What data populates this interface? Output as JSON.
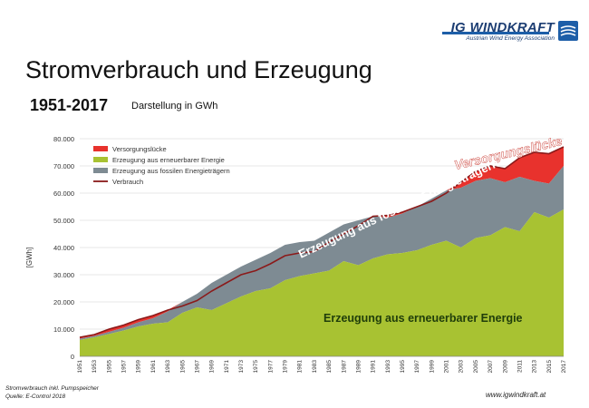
{
  "header": {
    "logo_title": "IG WINDKRAFT",
    "logo_subtitle": "Austrian Wind Energy Association",
    "title": "Stromverbrauch und Erzeugung",
    "range": "1951-2017",
    "unit_note": "Darstellung in GWh"
  },
  "footer": {
    "note_line1": "Stromverbrauch inkl. Pumpspeicher",
    "note_line2": "Quelle: E-Control 2018",
    "url": "www.igwindkraft.at"
  },
  "colors": {
    "renewable": "#a8c232",
    "fossil": "#7e8b93",
    "gap": "#e8322d",
    "consumption": "#8b1a1a",
    "grid": "#d0d0d0",
    "logo": "#1d3e73"
  },
  "chart_data": {
    "type": "area",
    "ylabel": "[GWh]",
    "xlabel": "",
    "ylim": [
      0,
      80000
    ],
    "yticks": [
      "0",
      "10.000",
      "20.000",
      "30.000",
      "40.000",
      "50.000",
      "60.000",
      "70.000",
      "80.000"
    ],
    "xticks": [
      "1951",
      "1953",
      "1955",
      "1957",
      "1959",
      "1961",
      "1963",
      "1965",
      "1967",
      "1969",
      "1971",
      "1973",
      "1975",
      "1977",
      "1979",
      "1981",
      "1983",
      "1985",
      "1987",
      "1989",
      "1991",
      "1993",
      "1995",
      "1997",
      "1999",
      "2001",
      "2003",
      "2005",
      "2007",
      "2009",
      "2011",
      "2013",
      "2015",
      "2017"
    ],
    "legend_position": "top-left",
    "legend": [
      "Versorgungslücke",
      "Erzeugung aus erneuerbarer Energie",
      "Erzeugung aus fossilen Energieträgern",
      "Verbrauch"
    ],
    "annotations": {
      "gap": "Versorgungslücke",
      "fossil": "Erzeugung aus fossilen Energieträgern",
      "renewable": "Erzeugung aus erneuerbarer Energie"
    },
    "x": [
      1951,
      1953,
      1955,
      1957,
      1959,
      1961,
      1963,
      1965,
      1967,
      1969,
      1971,
      1973,
      1975,
      1977,
      1979,
      1981,
      1983,
      1985,
      1987,
      1989,
      1991,
      1993,
      1995,
      1997,
      1999,
      2001,
      2003,
      2005,
      2007,
      2009,
      2011,
      2013,
      2015,
      2017
    ],
    "series": [
      {
        "name": "Erzeugung aus erneuerbarer Energie",
        "values": [
          6000,
          7000,
          8200,
          9500,
          11000,
          12000,
          12500,
          16000,
          18000,
          17000,
          19500,
          22000,
          24000,
          25000,
          28000,
          29500,
          30500,
          31500,
          35000,
          33500,
          36000,
          37500,
          38000,
          39000,
          41000,
          42500,
          40000,
          43500,
          44500,
          47500,
          46000,
          53000,
          51000,
          54000
        ]
      },
      {
        "name": "Erzeugung aus fossilen Energieträgern",
        "values": [
          6500,
          7500,
          9000,
          10500,
          12500,
          14000,
          16500,
          20000,
          23000,
          27000,
          30000,
          33000,
          35500,
          38000,
          41000,
          42000,
          42500,
          45500,
          48500,
          50000,
          51500,
          51000,
          52500,
          55000,
          58000,
          61000,
          62000,
          64500,
          65500,
          64000,
          66000,
          64500,
          63500,
          70000
        ]
      },
      {
        "name": "Verbrauch",
        "values": [
          7000,
          8000,
          10000,
          11500,
          13500,
          15000,
          17000,
          18500,
          20500,
          24000,
          27000,
          30000,
          31500,
          34000,
          37000,
          38000,
          38500,
          42000,
          45000,
          48000,
          51500,
          51800,
          53000,
          55000,
          57000,
          60000,
          64000,
          68000,
          70000,
          69000,
          73000,
          75000,
          74500,
          77000
        ]
      }
    ]
  }
}
